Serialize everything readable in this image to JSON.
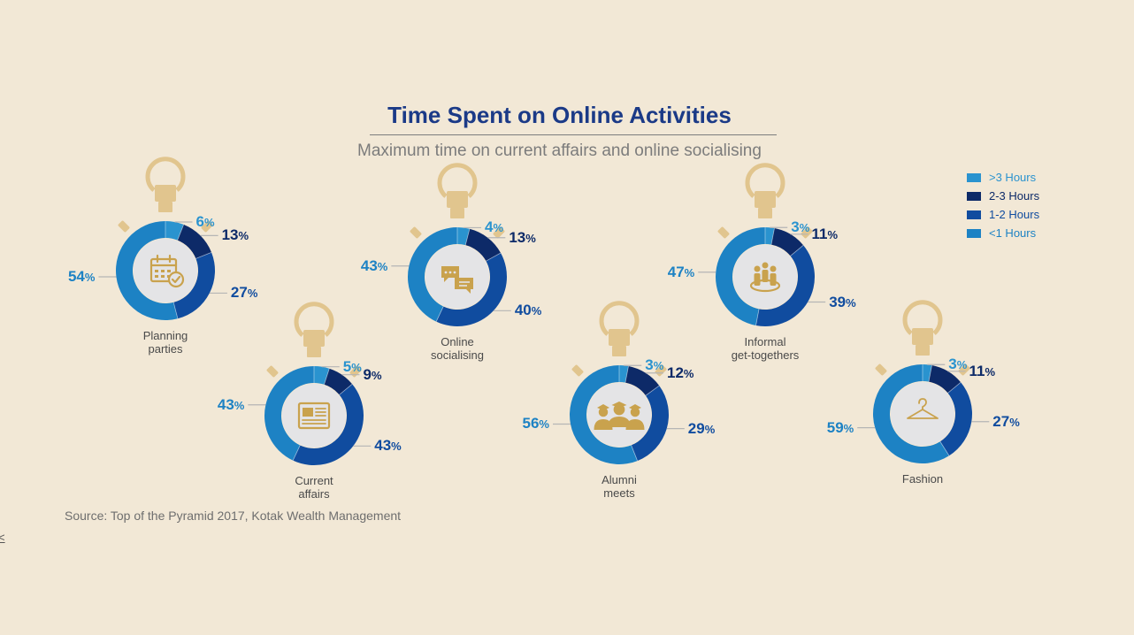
{
  "chart_data": {
    "type": "donut",
    "title": "Time Spent on Online Activities",
    "subtitle": "Maximum time on current affairs and online socialising",
    "legend": {
      "placement": "top-right",
      "items": [
        {
          "label": ">3 Hours",
          "color": "#2a93cf"
        },
        {
          "label": "2-3 Hours",
          "color": "#0d2a68"
        },
        {
          "label": "1-2 Hours",
          "color": "#104c9f"
        },
        {
          "label": "<1 Hours",
          "color": "#1d82c4"
        }
      ]
    },
    "series_order": [
      ">3 Hours",
      "2-3 Hours",
      "1-2 Hours",
      "<1 Hours"
    ],
    "activities": [
      {
        "name": "Planning parties",
        "name_lines": [
          "Planning",
          "parties"
        ],
        "icon": "calendar-check-icon",
        "values": [
          6,
          13,
          27,
          54
        ]
      },
      {
        "name": "Current affairs",
        "name_lines": [
          "Current",
          "affairs"
        ],
        "icon": "newspaper-icon",
        "values": [
          5,
          9,
          43,
          43
        ]
      },
      {
        "name": "Online socialising",
        "name_lines": [
          "Online",
          "socialising"
        ],
        "icon": "chat-bubbles-icon",
        "values": [
          4,
          13,
          40,
          43
        ]
      },
      {
        "name": "Alumni meets",
        "name_lines": [
          "Alumni",
          "meets"
        ],
        "icon": "graduates-icon",
        "values": [
          3,
          12,
          29,
          56
        ]
      },
      {
        "name": "Informal get-togethers",
        "name_lines": [
          "Informal",
          "get-togethers"
        ],
        "icon": "group-people-icon",
        "values": [
          3,
          11,
          39,
          47
        ]
      },
      {
        "name": "Fashion",
        "name_lines": [
          "Fashion"
        ],
        "icon": "hanger-icon",
        "values": [
          3,
          11,
          27,
          59
        ]
      }
    ],
    "percent_symbol": "%",
    "source": "Source: Top of the Pyramid 2017, Kotak Wealth Management"
  },
  "edge_mark": "<"
}
